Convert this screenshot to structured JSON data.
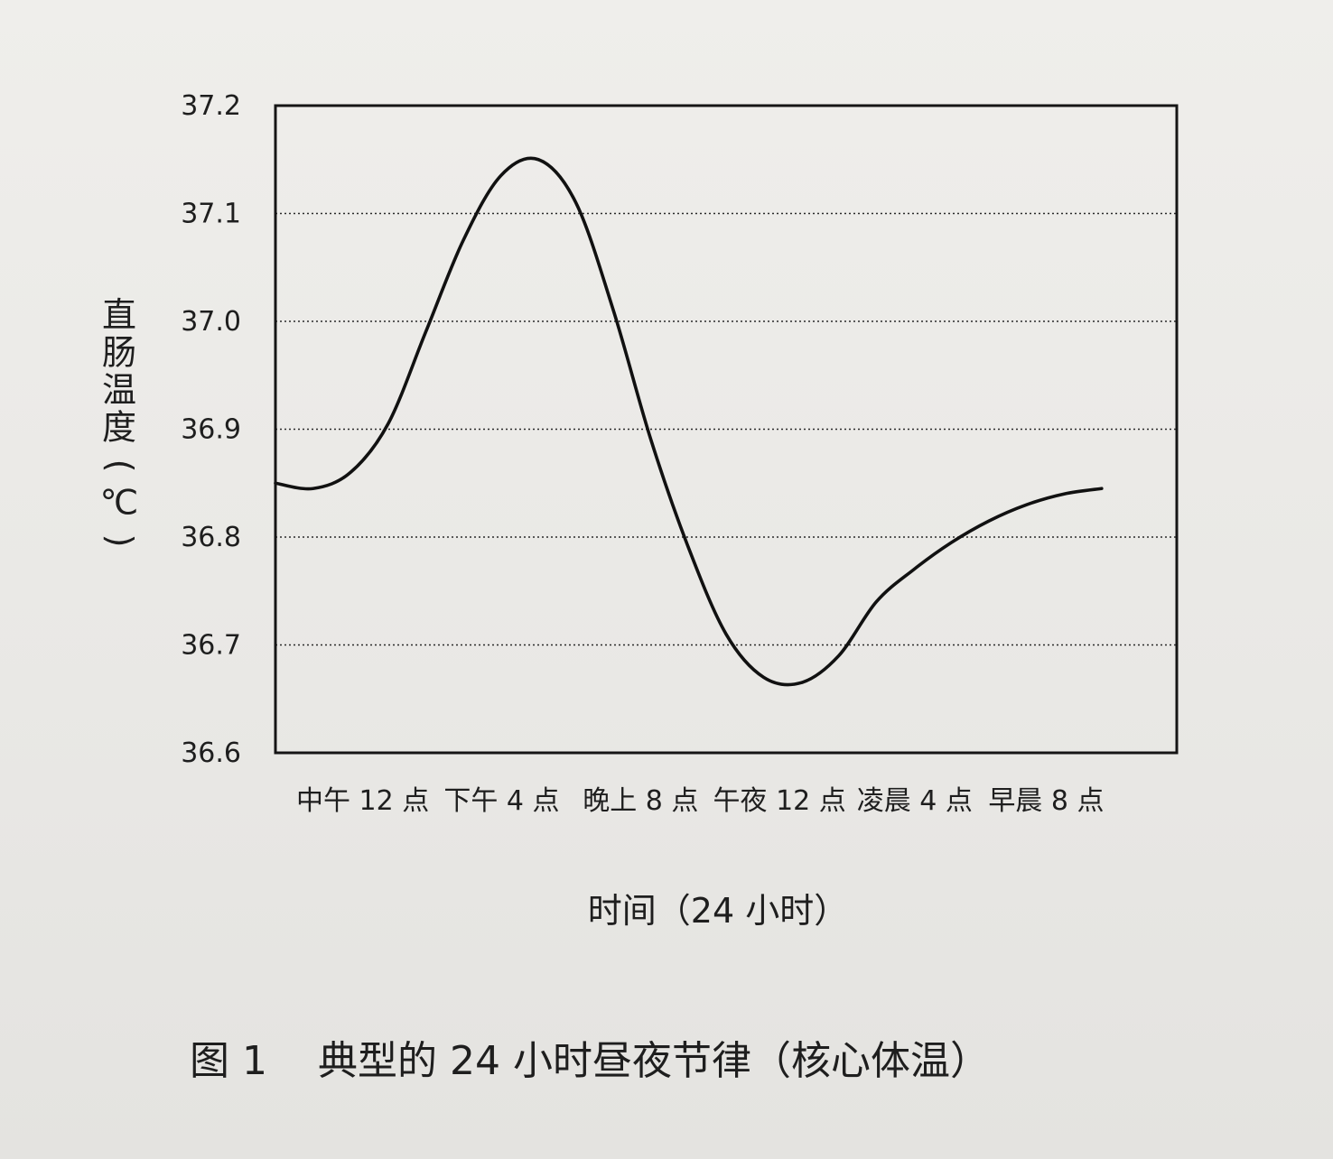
{
  "chart_data": {
    "type": "line",
    "title": "",
    "ylabel_chars": [
      "直",
      "肠",
      "温",
      "度",
      "(",
      "℃",
      ")"
    ],
    "xlabel": "时间（24 小时）",
    "ylim": [
      36.6,
      37.2
    ],
    "yticks": [
      "36.6",
      "36.7",
      "36.8",
      "36.9",
      "37.0",
      "37.1",
      "37.2"
    ],
    "ytick_values": [
      36.6,
      36.7,
      36.8,
      36.9,
      37.0,
      37.1,
      37.2
    ],
    "grid": true,
    "x_domain": [
      0,
      24
    ],
    "xtick_labels": [
      "中午 12 点",
      "下午 4 点",
      "晚上 8 点",
      "午夜 12 点",
      "凌晨 4 点",
      "早晨 8 点"
    ],
    "xtick_hours": [
      1.0,
      4.7,
      8.4,
      12.1,
      15.7,
      19.2
    ],
    "series": [
      {
        "x": [
          0,
          1,
          2,
          3,
          4,
          5,
          6,
          7,
          8,
          9,
          10,
          11,
          12,
          13,
          14,
          15,
          16,
          17,
          18,
          19,
          20,
          21,
          22
        ],
        "values": [
          36.85,
          36.845,
          36.86,
          36.905,
          36.99,
          37.075,
          37.135,
          37.15,
          37.11,
          37.01,
          36.89,
          36.79,
          36.71,
          36.67,
          36.665,
          36.69,
          36.74,
          36.77,
          36.795,
          36.815,
          36.83,
          36.84,
          36.845
        ]
      }
    ]
  },
  "caption": {
    "figure_label": "图 1",
    "text": "典型的 24 小时昼夜节律（核心体温）"
  }
}
